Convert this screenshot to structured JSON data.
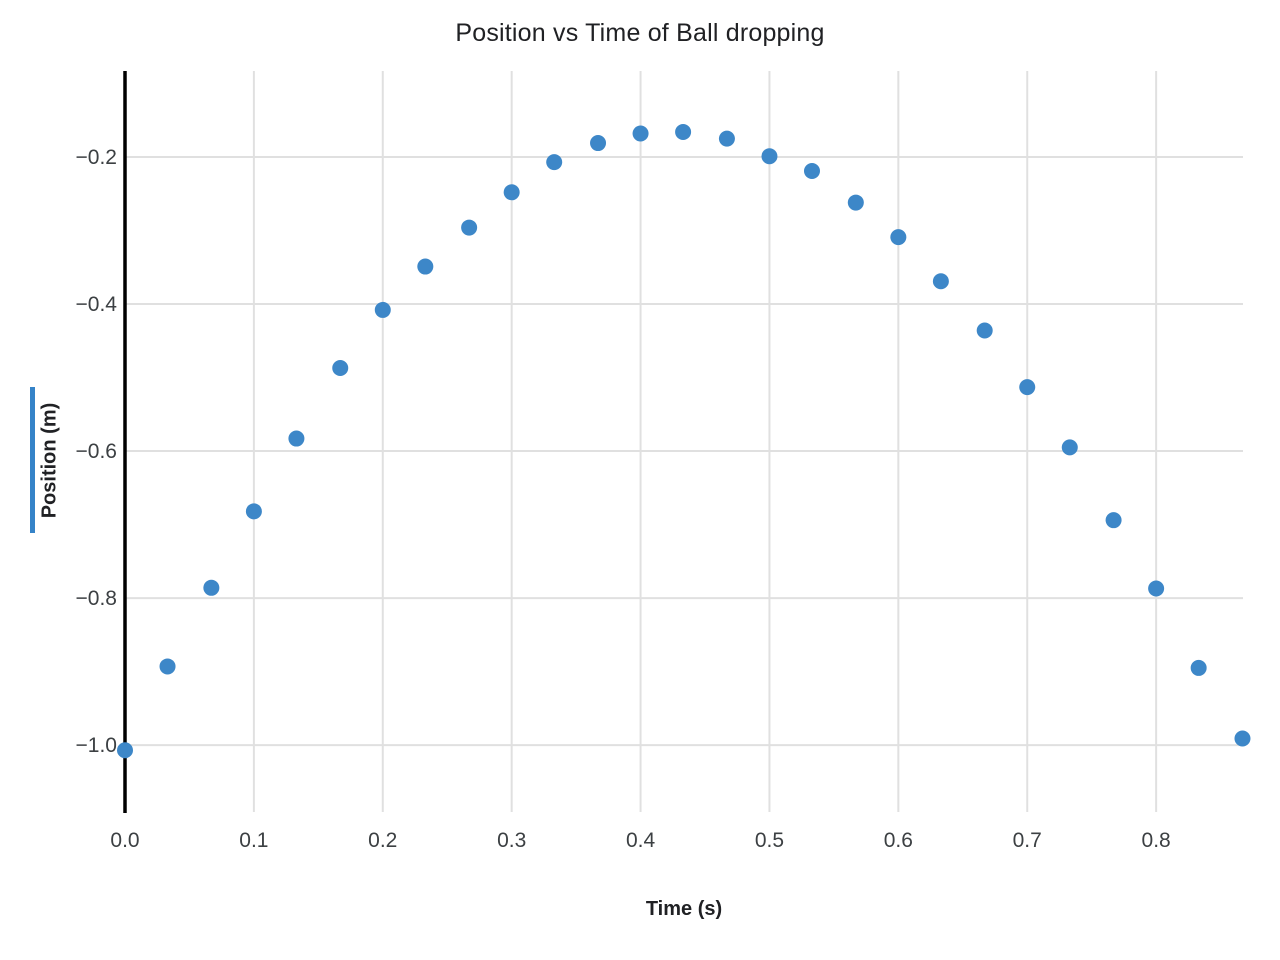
{
  "chart_data": {
    "type": "scatter",
    "title": "Position vs Time of Ball dropping",
    "xlabel": "Time (s)",
    "ylabel": "Position (m)",
    "x": [
      0.0,
      0.033,
      0.067,
      0.1,
      0.133,
      0.167,
      0.2,
      0.233,
      0.267,
      0.3,
      0.333,
      0.367,
      0.4,
      0.433,
      0.467,
      0.5,
      0.533,
      0.567,
      0.6,
      0.633,
      0.667,
      0.7,
      0.733,
      0.767,
      0.8,
      0.833,
      0.867
    ],
    "y": [
      -1.007,
      -0.893,
      -0.786,
      -0.682,
      -0.583,
      -0.487,
      -0.408,
      -0.349,
      -0.296,
      -0.248,
      -0.207,
      -0.181,
      -0.168,
      -0.166,
      -0.175,
      -0.199,
      -0.219,
      -0.262,
      -0.309,
      -0.369,
      -0.436,
      -0.513,
      -0.595,
      -0.694,
      -0.787,
      -0.895,
      -0.991
    ],
    "xlim": [
      0,
      0.8674
    ],
    "ylim": [
      -1.091,
      -0.083
    ],
    "x_ticks": [
      0.0,
      0.1,
      0.2,
      0.3,
      0.4,
      0.5,
      0.6,
      0.7,
      0.8
    ],
    "x_tick_labels": [
      "0.0",
      "0.1",
      "0.2",
      "0.3",
      "0.4",
      "0.5",
      "0.6",
      "0.7",
      "0.8"
    ],
    "y_ticks": [
      -0.2,
      -0.4,
      -0.6,
      -0.8,
      -1.0
    ],
    "y_tick_labels": [
      "−0.2",
      "−0.4",
      "−0.6",
      "−0.8",
      "−1.0"
    ],
    "grid": true,
    "legend_position": "none",
    "marker": "circle",
    "marker_radius_px": 8,
    "colors": {
      "point": "#3d87c8",
      "series_bar": "#3583c8",
      "grid": "#e0e0e0",
      "axis": "#000000",
      "tick_text": "#3c4043",
      "title_text": "#202124"
    }
  }
}
